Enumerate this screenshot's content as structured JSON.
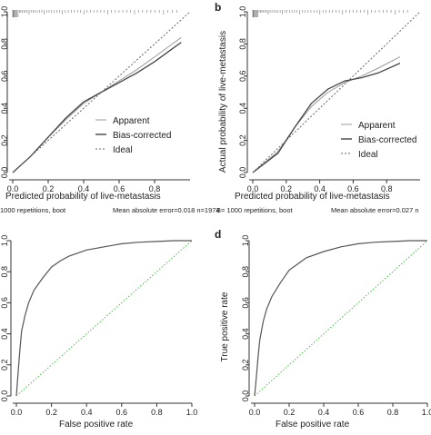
{
  "panels": {
    "a": {
      "letter": "",
      "x_title": "Predicted probability of live-metastasis",
      "y_title": "",
      "footer_left": "1000 repetitions, boot",
      "footer_right": "Mean absolute error=0.018 n=1974"
    },
    "b": {
      "letter": "b",
      "x_title": "Predicted probability of live-metastasis",
      "y_title": "Actual probability of live-metastasis",
      "footer_left": "B= 1000 repetitions, boot",
      "footer_right": "Mean absolute error=0.027 n"
    },
    "c": {
      "letter": "",
      "x_title": "False positive rate",
      "y_title": ""
    },
    "d": {
      "letter": "d",
      "x_title": "False positive rate",
      "y_title": "True positive rate"
    }
  },
  "legend": {
    "apparent": "Apparent",
    "bias_corrected": "Bias-corrected",
    "ideal": "Ideal"
  },
  "colors": {
    "axis": "#333333",
    "apparent": "#9a9a9a",
    "bias": "#444444",
    "ideal": "#666666",
    "roc": "#555555",
    "chance": "#4cbb4c"
  },
  "chart_data": [
    {
      "id": "a",
      "type": "line",
      "xlabel": "Predicted probability of live-metastasis",
      "ylabel": "",
      "xlim": [
        0,
        1
      ],
      "ylim": [
        0,
        1
      ],
      "xticks": [
        "0.0",
        "0.2",
        "0.4",
        "0.6",
        "0.8"
      ],
      "yticks": [
        "0.0",
        "0.2",
        "0.4",
        "0.6",
        "0.8",
        "1.0"
      ],
      "ytick_labels_visible": [
        "0.0",
        "0.2",
        "0.4",
        "0.6",
        "0.8",
        "1.0"
      ],
      "series": [
        {
          "name": "Apparent",
          "x": [
            0.0,
            0.1,
            0.2,
            0.3,
            0.4,
            0.5,
            0.6,
            0.7,
            0.8,
            0.9,
            0.95
          ],
          "y": [
            0.0,
            0.1,
            0.22,
            0.33,
            0.43,
            0.5,
            0.57,
            0.64,
            0.72,
            0.8,
            0.84
          ]
        },
        {
          "name": "Bias-corrected",
          "x": [
            0.0,
            0.1,
            0.2,
            0.3,
            0.4,
            0.5,
            0.6,
            0.7,
            0.8,
            0.9,
            0.95
          ],
          "y": [
            0.0,
            0.1,
            0.22,
            0.34,
            0.44,
            0.5,
            0.56,
            0.62,
            0.69,
            0.77,
            0.81
          ]
        },
        {
          "name": "Ideal",
          "x": [
            0,
            1
          ],
          "y": [
            0,
            1
          ]
        }
      ]
    },
    {
      "id": "b",
      "type": "line",
      "xlabel": "Predicted probability of live-metastasis",
      "ylabel": "Actual probability of live-metastasis",
      "xlim": [
        0,
        1
      ],
      "ylim": [
        0,
        1
      ],
      "xticks": [
        "0.0",
        "0.2",
        "0.4",
        "0.6",
        "0.8"
      ],
      "yticks": [
        "0.0",
        "0.2",
        "0.4",
        "0.6",
        "0.8",
        "1.0"
      ],
      "series": [
        {
          "name": "Apparent",
          "x": [
            0.0,
            0.15,
            0.25,
            0.35,
            0.45,
            0.55,
            0.65,
            0.75,
            0.88
          ],
          "y": [
            0.0,
            0.13,
            0.28,
            0.41,
            0.5,
            0.56,
            0.6,
            0.65,
            0.72
          ]
        },
        {
          "name": "Bias-corrected",
          "x": [
            0.0,
            0.15,
            0.25,
            0.35,
            0.45,
            0.55,
            0.65,
            0.75,
            0.88
          ],
          "y": [
            0.0,
            0.12,
            0.28,
            0.43,
            0.52,
            0.57,
            0.59,
            0.62,
            0.68
          ]
        },
        {
          "name": "Ideal",
          "x": [
            0,
            1
          ],
          "y": [
            0,
            1
          ]
        }
      ]
    },
    {
      "id": "c",
      "type": "line",
      "xlabel": "False positive rate",
      "ylabel": "",
      "xlim": [
        0,
        1
      ],
      "ylim": [
        0,
        1
      ],
      "xticks": [
        "0.0",
        "0.2",
        "0.4",
        "0.6",
        "0.8",
        "1.0"
      ],
      "yticks": [
        "0.0",
        "0.2",
        "0.4",
        "0.6",
        "0.8",
        "1.0"
      ],
      "series": [
        {
          "name": "",
          "x": [
            0.0,
            0.01,
            0.02,
            0.03,
            0.05,
            0.07,
            0.1,
            0.15,
            0.2,
            0.25,
            0.3,
            0.4,
            0.5,
            0.6,
            0.7,
            0.8,
            0.9,
            1.0
          ],
          "y": [
            0.0,
            0.15,
            0.3,
            0.42,
            0.52,
            0.6,
            0.68,
            0.76,
            0.83,
            0.87,
            0.9,
            0.94,
            0.96,
            0.98,
            0.99,
            0.995,
            1.0,
            1.0
          ]
        },
        {
          "name": "",
          "x": [
            0,
            1
          ],
          "y": [
            0,
            1
          ]
        }
      ]
    },
    {
      "id": "d",
      "type": "line",
      "xlabel": "False positive rate",
      "ylabel": "True positive rate",
      "xlim": [
        0,
        1
      ],
      "ylim": [
        0,
        1
      ],
      "xticks": [
        "0.0",
        "0.2",
        "0.4",
        "0.6",
        "0.8",
        "1.0"
      ],
      "yticks": [
        "0.0",
        "0.2",
        "0.4",
        "0.6",
        "0.8",
        "1.0"
      ],
      "series": [
        {
          "name": "",
          "x": [
            0.0,
            0.01,
            0.02,
            0.03,
            0.05,
            0.07,
            0.1,
            0.15,
            0.2,
            0.25,
            0.3,
            0.4,
            0.5,
            0.6,
            0.7,
            0.8,
            0.9,
            1.0
          ],
          "y": [
            0.0,
            0.12,
            0.25,
            0.36,
            0.48,
            0.56,
            0.64,
            0.73,
            0.81,
            0.85,
            0.89,
            0.93,
            0.96,
            0.98,
            0.99,
            0.995,
            1.0,
            1.0
          ]
        },
        {
          "name": "",
          "x": [
            0,
            1
          ],
          "y": [
            0,
            1
          ]
        }
      ]
    }
  ]
}
